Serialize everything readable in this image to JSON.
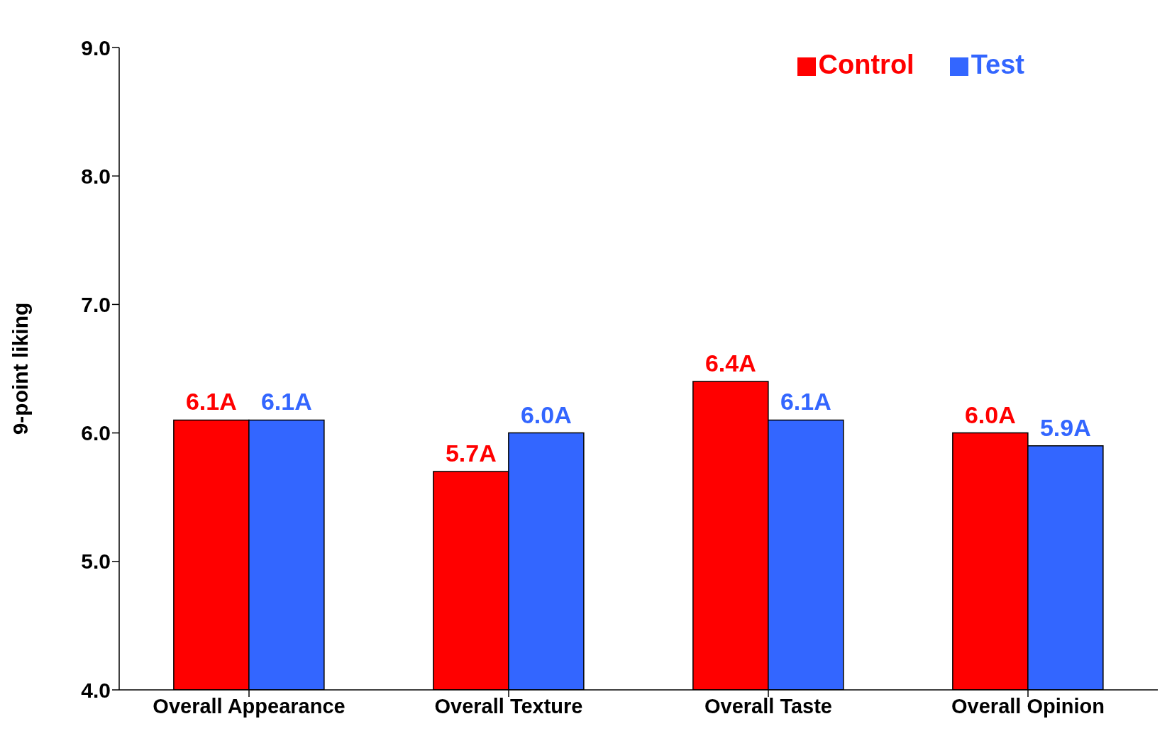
{
  "chart_data": {
    "type": "bar",
    "ylabel": "9-point liking",
    "categories": [
      "Overall Appearance",
      "Overall Texture",
      "Overall Taste",
      "Overall Opinion"
    ],
    "series": [
      {
        "name": "Control",
        "color": "#ff0000",
        "values": [
          6.1,
          5.7,
          6.4,
          6.0
        ],
        "value_labels": [
          "6.1A",
          "5.7A",
          "6.4A",
          "6.0A"
        ]
      },
      {
        "name": "Test",
        "color": "#3366ff",
        "values": [
          6.1,
          6.0,
          6.1,
          5.9
        ],
        "value_labels": [
          "6.1A",
          "6.0A",
          "6.1A",
          "5.9A"
        ]
      }
    ],
    "ylim": [
      4,
      9
    ],
    "yticks": [
      {
        "value": 4,
        "label": "4.0"
      },
      {
        "value": 5,
        "label": "5.0"
      },
      {
        "value": 6,
        "label": "6.0"
      },
      {
        "value": 7,
        "label": "7.0"
      },
      {
        "value": 8,
        "label": "8.0"
      },
      {
        "value": 9,
        "label": "9.0"
      }
    ],
    "grid": false,
    "legend": "top right"
  }
}
